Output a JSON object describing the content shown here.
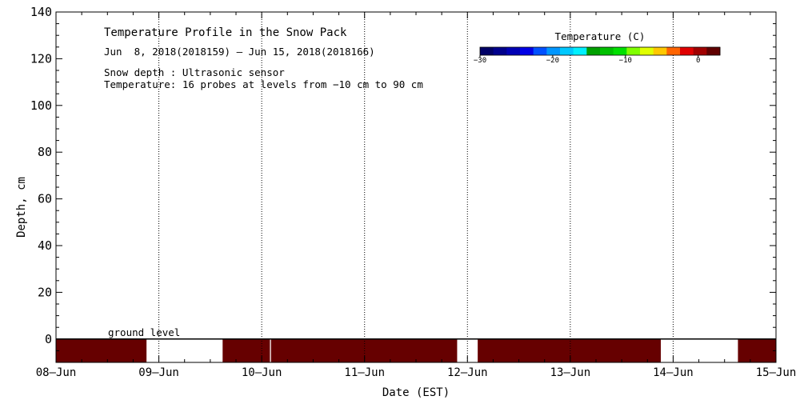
{
  "chart_data": {
    "type": "heatmap",
    "title": "Temperature Profile in the Snow Pack",
    "subtitle": "Jun  8, 2018(2018159) – Jun 15, 2018(2018166)",
    "notes": [
      "Snow depth : Ultrasonic sensor",
      "Temperature: 16 probes at levels from −10 cm to 90 cm"
    ],
    "xlabel": "Date (EST)",
    "ylabel": "Depth, cm",
    "x_ticks": [
      "08–Jun",
      "09–Jun",
      "10–Jun",
      "11–Jun",
      "12–Jun",
      "13–Jun",
      "14–Jun",
      "15–Jun"
    ],
    "xlim_days": [
      0,
      7
    ],
    "ylim": [
      -10,
      140
    ],
    "y_ticks": [
      0,
      20,
      40,
      60,
      80,
      100,
      120,
      140
    ],
    "grid": "dotted vertical at day ticks, dotted horizontal at 0 cm",
    "ground_level_label": "ground level",
    "ground_level": 0,
    "colorbar": {
      "title": "Temperature (C)",
      "range": [
        -30,
        3
      ],
      "tick_values": [
        -30,
        -20,
        -10,
        0
      ],
      "tick_labels": [
        "−30",
        "−20",
        "−10",
        "0"
      ],
      "colors": [
        "#000066",
        "#00008c",
        "#0000b4",
        "#0000e6",
        "#0050ff",
        "#0096ff",
        "#00c8ff",
        "#00f0ff",
        "#00a000",
        "#00c000",
        "#00e000",
        "#80ff00",
        "#e0ff00",
        "#ffc800",
        "#ff6400",
        "#e00000",
        "#a00000",
        "#600000"
      ]
    },
    "heat_fill_color": "#660000",
    "heat_segments_days": [
      [
        0.0,
        0.88
      ],
      [
        1.62,
        2.08
      ],
      [
        2.09,
        3.9
      ],
      [
        4.1,
        5.88
      ],
      [
        6.63,
        7.0
      ]
    ],
    "heat_depth_range": [
      -10,
      0
    ]
  }
}
